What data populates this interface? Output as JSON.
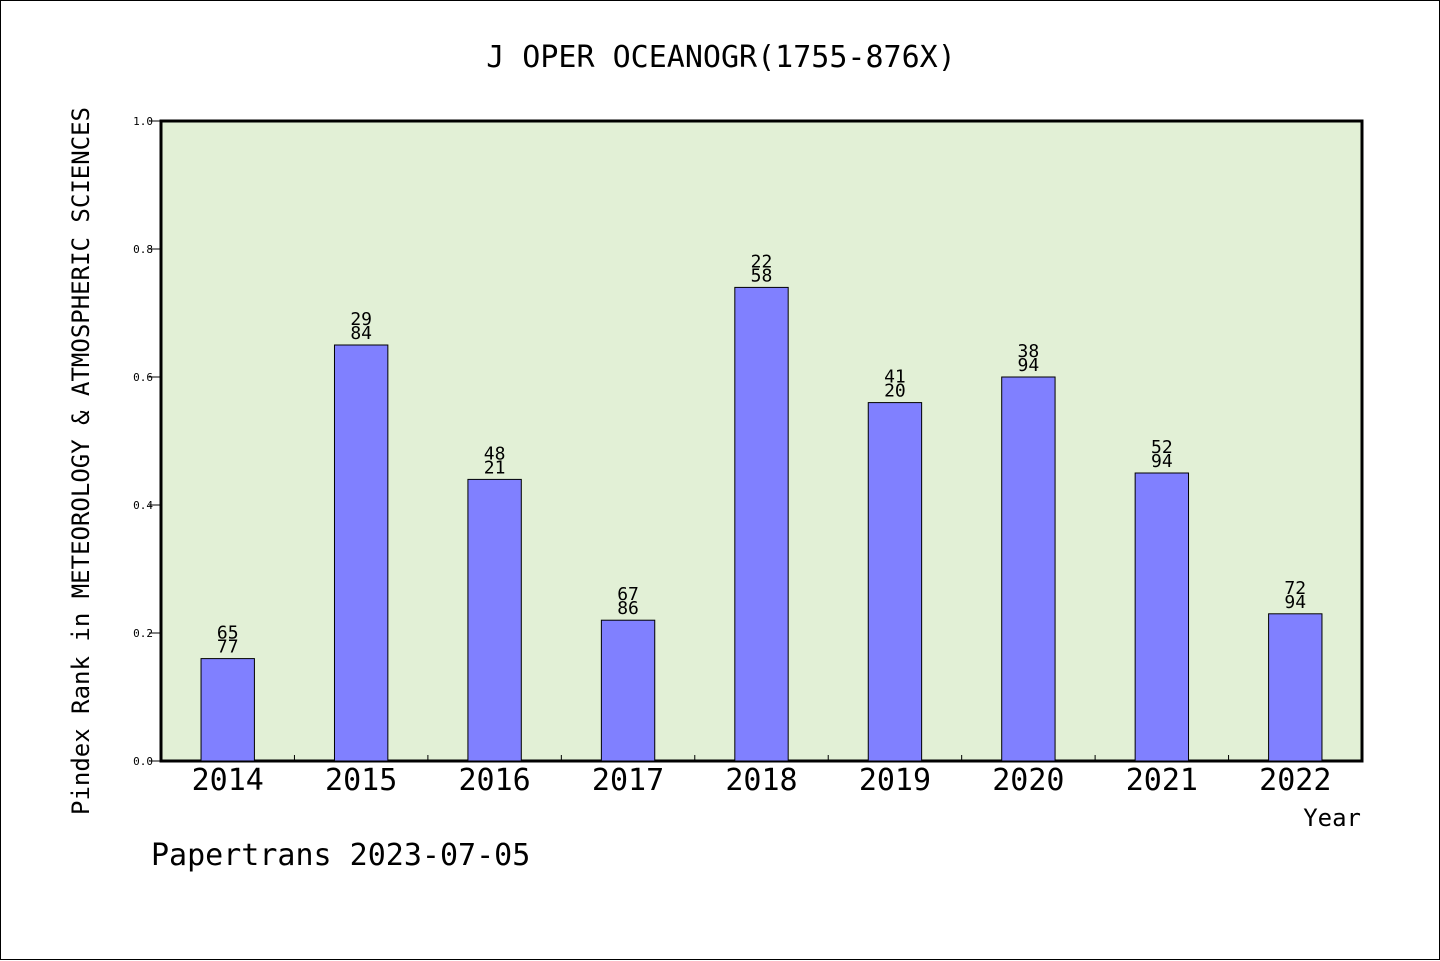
{
  "chart_data": {
    "type": "bar",
    "title": "J OPER OCEANOGR(1755-876X)",
    "xlabel": "Year",
    "ylabel": "Pindex Rank in METEOROLOGY & ATMOSPHERIC SCIENCES",
    "footer": "Papertrans 2023-07-05",
    "ylim": [
      0,
      1.0
    ],
    "yticks": [
      "0.0",
      "0.2",
      "0.4",
      "0.6",
      "0.8",
      "1.0"
    ],
    "categories": [
      "2014",
      "2015",
      "2016",
      "2017",
      "2018",
      "2019",
      "2020",
      "2021",
      "2022"
    ],
    "values": [
      0.16,
      0.65,
      0.44,
      0.22,
      0.74,
      0.56,
      0.6,
      0.45,
      0.23
    ],
    "labels_top": [
      "65",
      "29",
      "48",
      "67",
      "22",
      "41",
      "38",
      "52",
      "72"
    ],
    "labels_bottom": [
      "77",
      "84",
      "21",
      "86",
      "58",
      "20",
      "94",
      "94",
      "94"
    ],
    "grid": false,
    "colors": {
      "bar": "#8080ff",
      "plot_background": "#e2f0d6"
    }
  }
}
